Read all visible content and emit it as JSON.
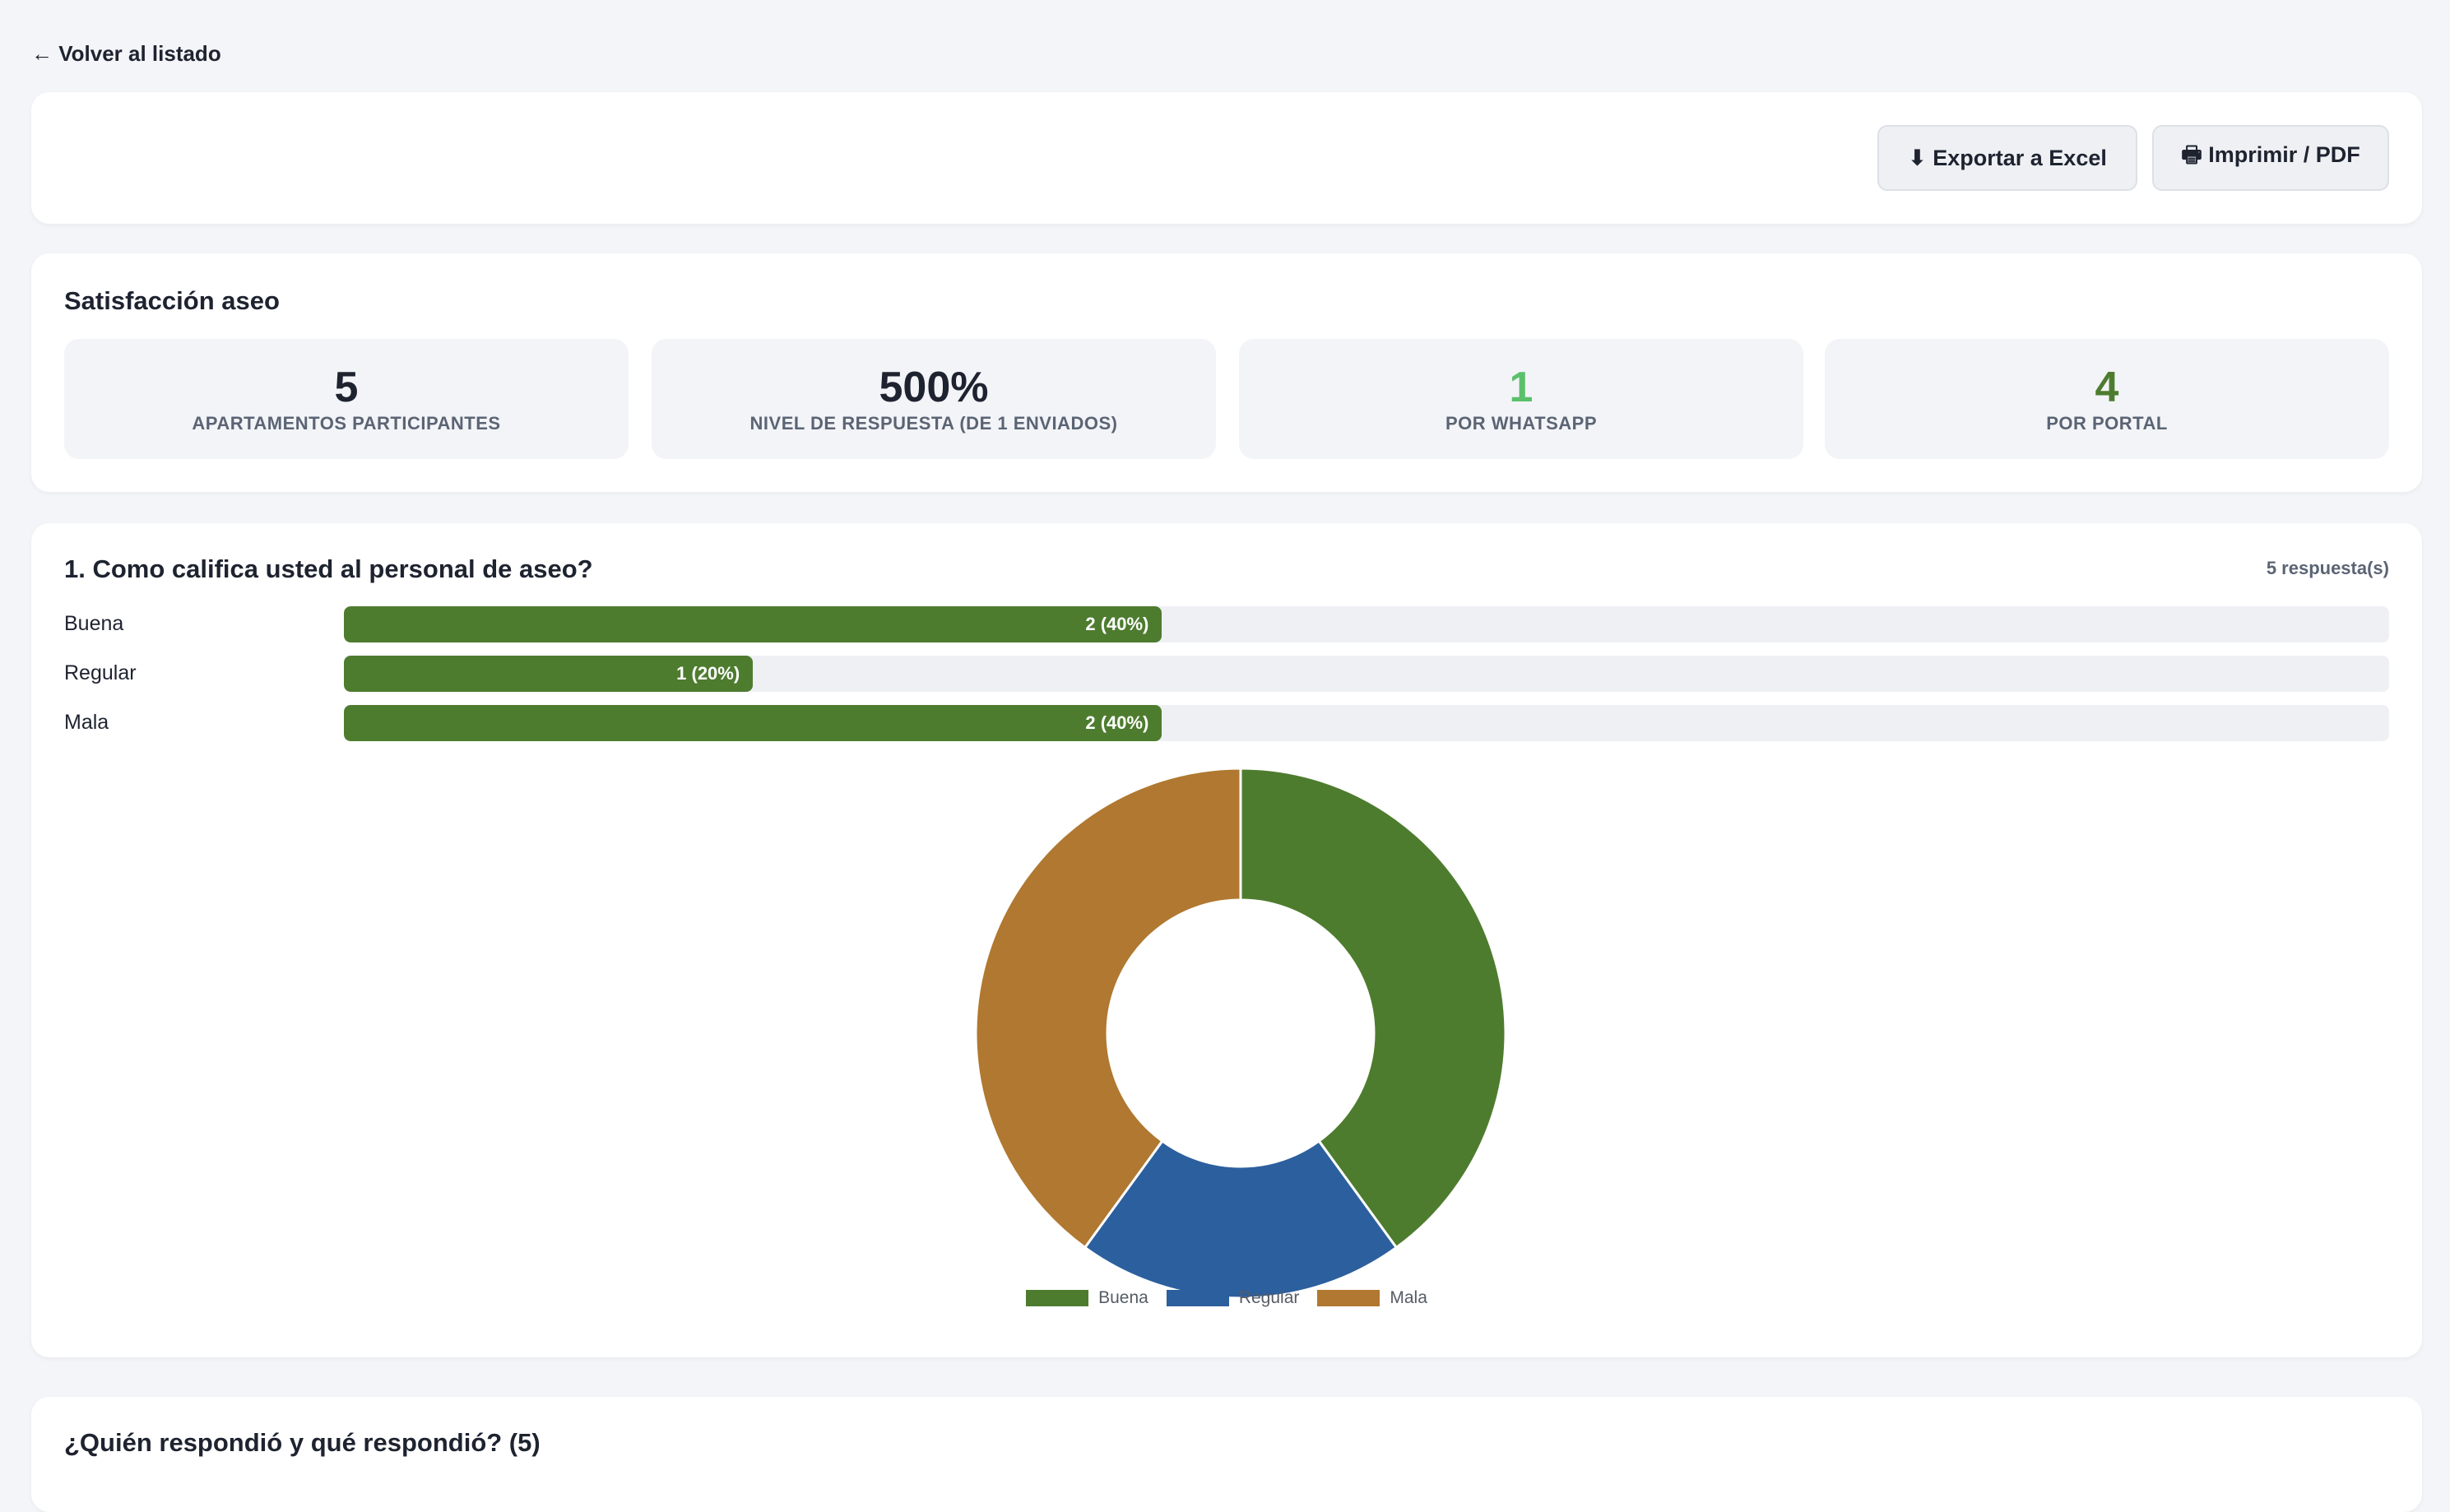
{
  "nav": {
    "back_label": "← Volver al listado"
  },
  "toolbar": {
    "export_label": "⬇ Exportar a Excel",
    "print_label": "🖶 Imprimir / PDF"
  },
  "summary": {
    "title": "Satisfacción aseo",
    "stats": [
      {
        "value": "5",
        "label": "APARTAMENTOS PARTICIPANTES",
        "color": "#1e2330"
      },
      {
        "value": "500%",
        "label": "NIVEL DE RESPUESTA (DE 1 ENVIADOS)",
        "color": "#1e2330"
      },
      {
        "value": "1",
        "label": "POR WHATSAPP",
        "color": "#5bc06b"
      },
      {
        "value": "4",
        "label": "POR PORTAL",
        "color": "#4e7c2f"
      }
    ]
  },
  "question": {
    "title": "1. Como califica usted al personal de aseo?",
    "responses": "5 respuesta(s)",
    "bars": [
      {
        "label": "Buena",
        "text": "2 (40%)"
      },
      {
        "label": "Regular",
        "text": "1 (20%)"
      },
      {
        "label": "Mala",
        "text": "2 (40%)"
      }
    ]
  },
  "chart_data": {
    "type": "pie",
    "categories": [
      "Buena",
      "Regular",
      "Mala"
    ],
    "values": [
      2,
      1,
      2
    ],
    "colors": [
      "#4e7c2f",
      "#2c5f9e",
      "#b07830"
    ],
    "donut": true,
    "legend_position": "bottom"
  },
  "who": {
    "title": "¿Quién respondió y qué respondió? (5)"
  },
  "colors": {
    "accent": "#4e7c2f",
    "background": "#f4f5f8"
  }
}
